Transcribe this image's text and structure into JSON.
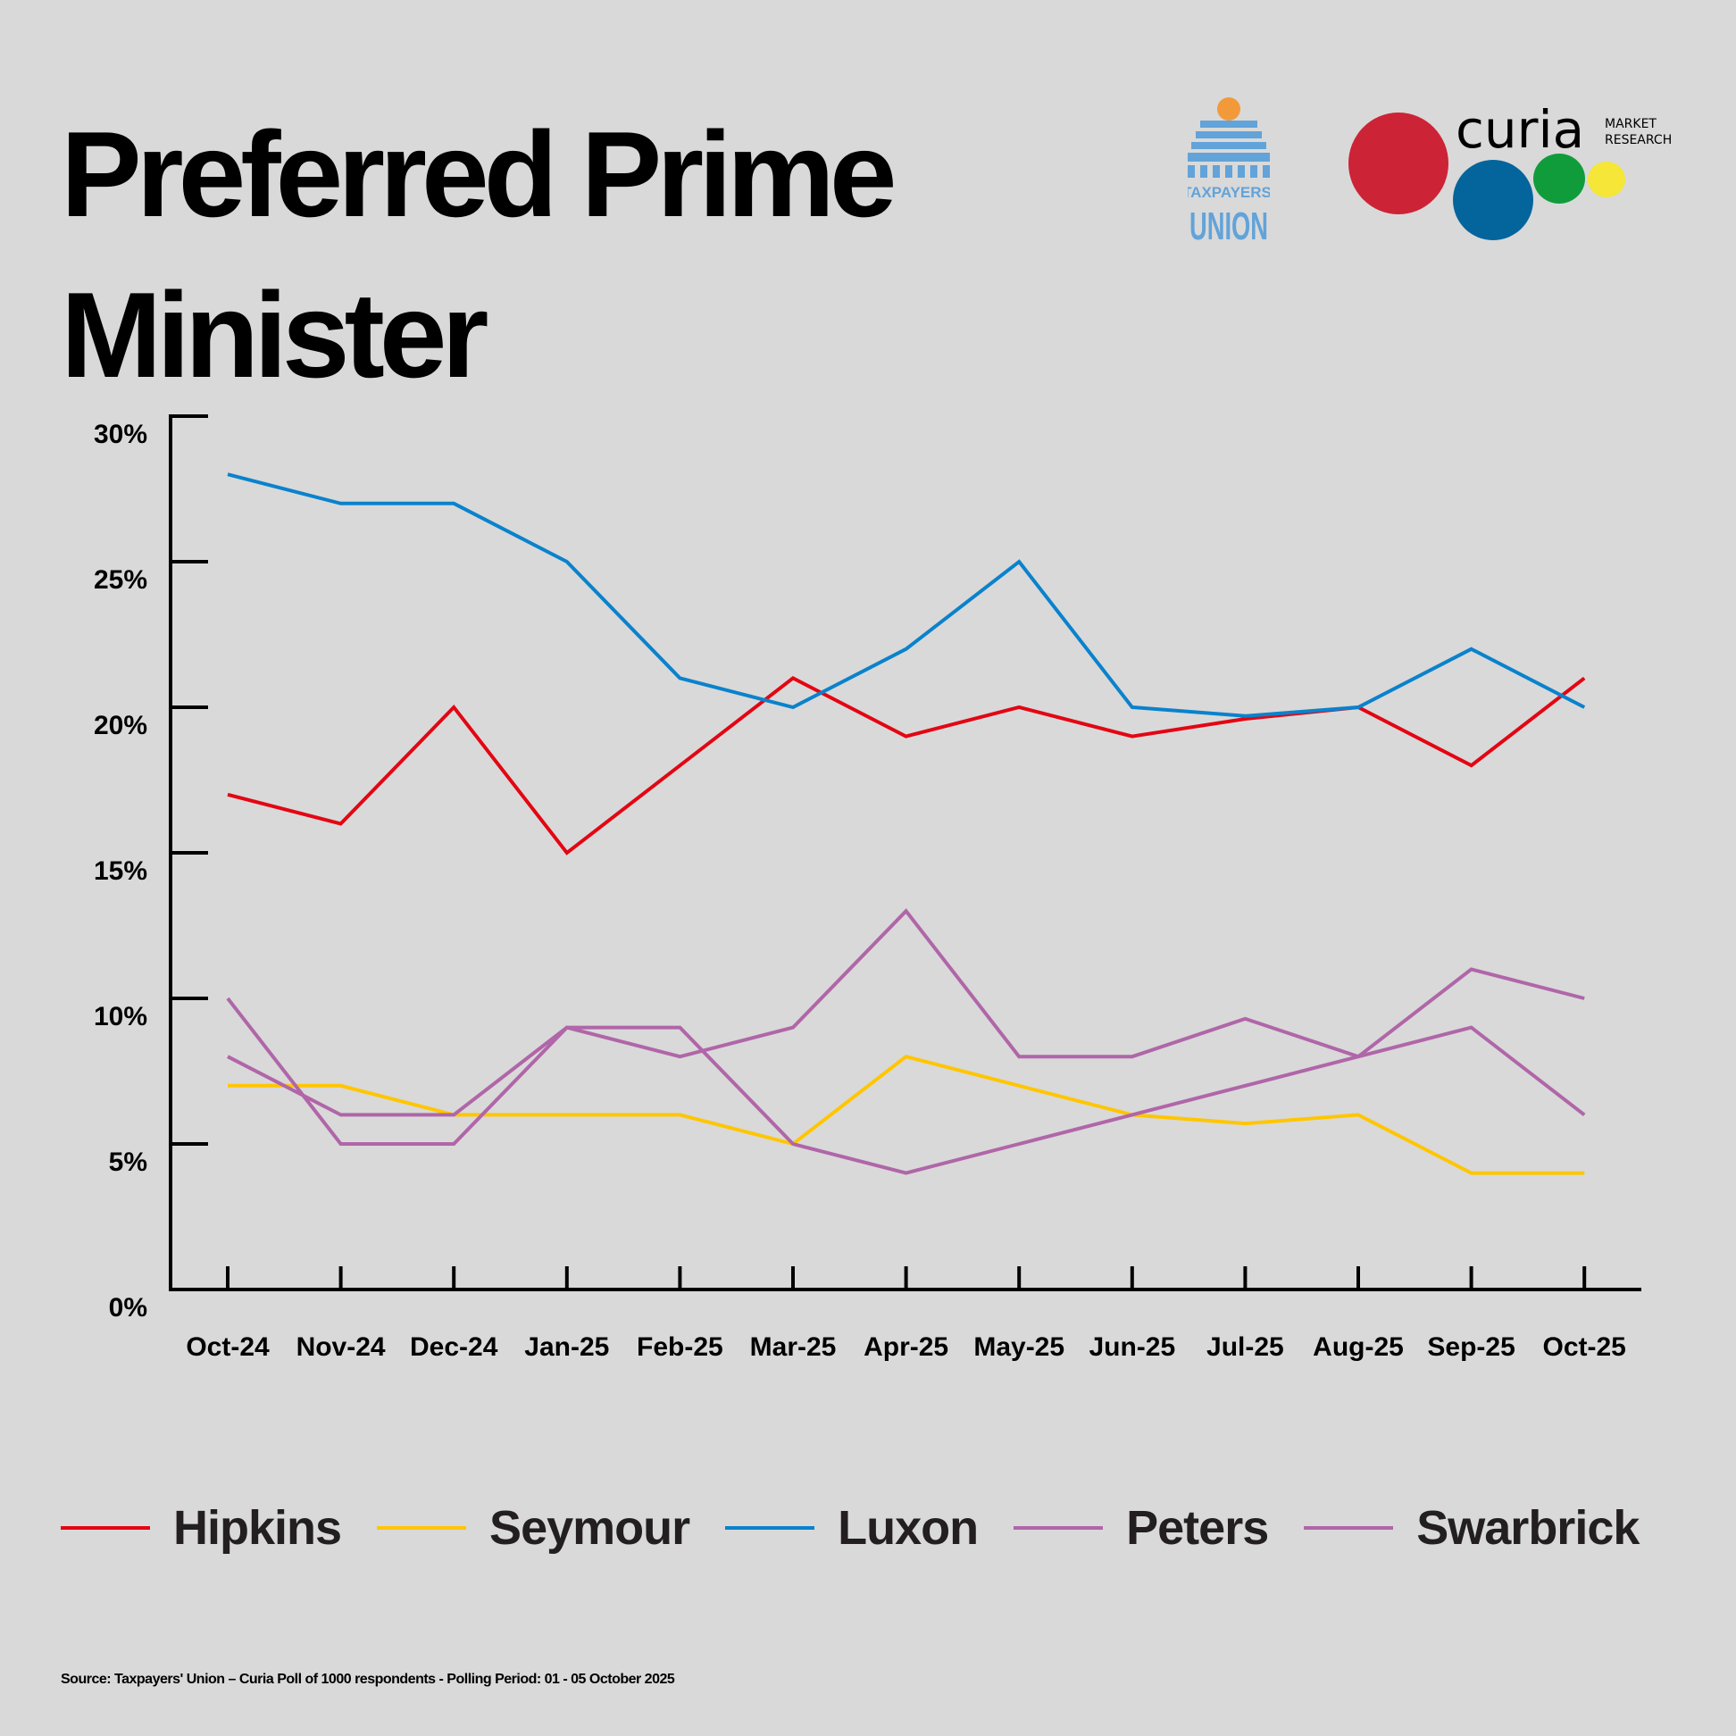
{
  "title": "Preferred Prime Minister",
  "logos": {
    "taxpayers_union": {
      "line1": "TAXPAYERS'",
      "line2": "UNION"
    },
    "curia": {
      "name": "curia",
      "sub1": "MARKET",
      "sub2": "RESEARCH"
    }
  },
  "source": "Source: Taxpayers' Union – Curia Poll of 1000 respondents -  Polling Period: 01 - 05 October 2025",
  "chart_data": {
    "type": "line",
    "title": "Preferred Prime Minister",
    "xlabel": "",
    "ylabel": "",
    "x": [
      "Oct-24",
      "Nov-24",
      "Dec-24",
      "Jan-25",
      "Feb-25",
      "Mar-25",
      "Apr-25",
      "May-25",
      "Jun-25",
      "Jul-25",
      "Aug-25",
      "Sep-25",
      "Oct-25"
    ],
    "ylim": [
      0,
      30
    ],
    "yticks": [
      0,
      5,
      10,
      15,
      20,
      25,
      30
    ],
    "ytick_labels": [
      "0%",
      "5%",
      "10%",
      "15%",
      "20%",
      "25%",
      "30%"
    ],
    "grid": false,
    "legend_position": "bottom",
    "series": [
      {
        "name": "Hipkins",
        "color": "#e30613",
        "values": [
          17,
          16,
          20,
          15,
          18,
          21,
          19,
          20,
          19,
          19.6,
          20,
          18,
          21
        ]
      },
      {
        "name": "Seymour",
        "color": "#ffc600",
        "values": [
          7,
          7,
          6,
          6,
          6,
          5,
          8,
          7,
          6,
          5.7,
          6,
          4,
          4
        ]
      },
      {
        "name": "Luxon",
        "color": "#0a82cc",
        "values": [
          28,
          27,
          27,
          25,
          21,
          20,
          22,
          25,
          20,
          19.7,
          20,
          22,
          20
        ]
      },
      {
        "name": "Peters",
        "color": "#b066a8",
        "values": [
          8,
          6,
          6,
          9,
          8,
          9,
          13,
          8,
          8,
          9.3,
          8,
          11,
          10
        ]
      },
      {
        "name": "Swarbrick",
        "color": "#b066a8",
        "values": [
          10,
          5,
          5,
          9,
          9,
          5,
          4,
          5,
          6,
          7,
          8,
          9,
          6
        ]
      }
    ]
  }
}
